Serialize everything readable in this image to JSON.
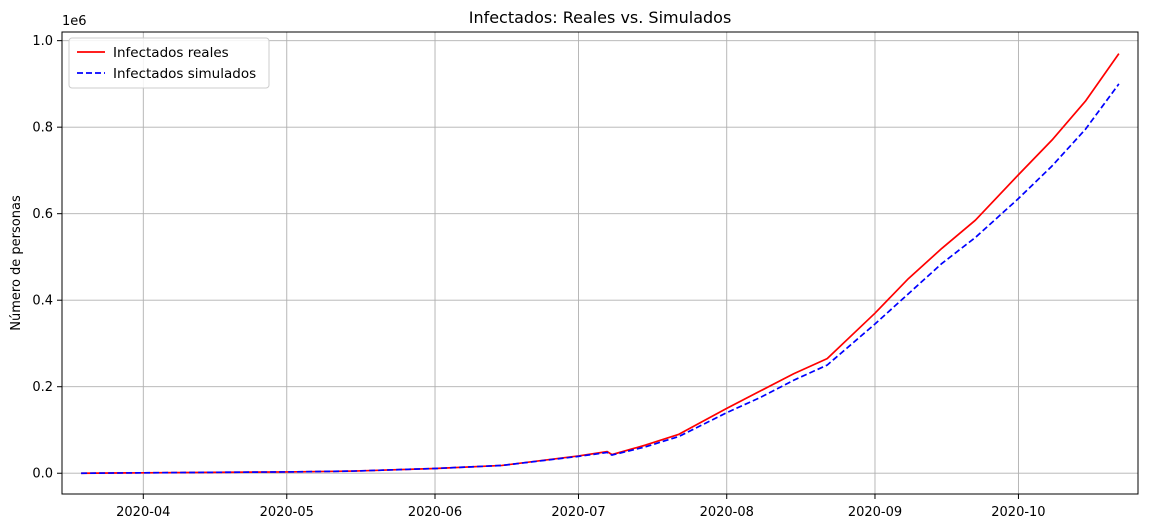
{
  "chart_data": {
    "type": "line",
    "title": "Infectados: Reales vs. Simulados",
    "xlabel": "",
    "ylabel": "Número de personas",
    "y_offset_label": "1e6",
    "x_type": "date",
    "xlim": [
      "2020-03-15",
      "2020-10-26"
    ],
    "ylim": [
      -0.048,
      1.02
    ],
    "y_scale_factor": 1000000,
    "x_ticks": [
      "2020-04-01",
      "2020-05-01",
      "2020-06-01",
      "2020-07-01",
      "2020-08-01",
      "2020-09-01",
      "2020-10-01"
    ],
    "x_tick_labels": [
      "2020-04",
      "2020-05",
      "2020-06",
      "2020-07",
      "2020-08",
      "2020-09",
      "2020-10"
    ],
    "y_ticks": [
      0.0,
      0.2,
      0.4,
      0.6,
      0.8,
      1.0
    ],
    "y_tick_labels": [
      "0.0",
      "0.2",
      "0.4",
      "0.6",
      "0.8",
      "1.0"
    ],
    "grid": true,
    "legend_position": "top-left",
    "series": [
      {
        "name": "Infectados reales",
        "color": "#ff0000",
        "line_style": "solid",
        "x": [
          "2020-03-19",
          "2020-04-01",
          "2020-04-15",
          "2020-05-01",
          "2020-05-15",
          "2020-06-01",
          "2020-06-15",
          "2020-07-01",
          "2020-07-07",
          "2020-07-08",
          "2020-07-15",
          "2020-07-22",
          "2020-08-01",
          "2020-08-08",
          "2020-08-15",
          "2020-08-22",
          "2020-09-01",
          "2020-09-08",
          "2020-09-15",
          "2020-09-22",
          "2020-10-01",
          "2020-10-08",
          "2020-10-15",
          "2020-10-22"
        ],
        "values": [
          0.0,
          0.001,
          0.002,
          0.003,
          0.005,
          0.011,
          0.018,
          0.04,
          0.05,
          0.043,
          0.065,
          0.09,
          0.15,
          0.19,
          0.23,
          0.265,
          0.37,
          0.45,
          0.52,
          0.585,
          0.69,
          0.77,
          0.86,
          0.97
        ]
      },
      {
        "name": "Infectados simulados",
        "color": "#0000ff",
        "line_style": "dashed",
        "x": [
          "2020-03-19",
          "2020-04-01",
          "2020-04-15",
          "2020-05-01",
          "2020-05-15",
          "2020-06-01",
          "2020-06-15",
          "2020-07-01",
          "2020-07-07",
          "2020-07-08",
          "2020-07-15",
          "2020-07-22",
          "2020-08-01",
          "2020-08-08",
          "2020-08-15",
          "2020-08-22",
          "2020-09-01",
          "2020-09-08",
          "2020-09-15",
          "2020-09-22",
          "2020-10-01",
          "2020-10-08",
          "2020-10-15",
          "2020-10-22"
        ],
        "values": [
          0.0,
          0.001,
          0.002,
          0.003,
          0.005,
          0.011,
          0.018,
          0.039,
          0.048,
          0.042,
          0.061,
          0.085,
          0.14,
          0.175,
          0.215,
          0.25,
          0.345,
          0.415,
          0.485,
          0.545,
          0.635,
          0.71,
          0.795,
          0.9
        ]
      }
    ]
  }
}
